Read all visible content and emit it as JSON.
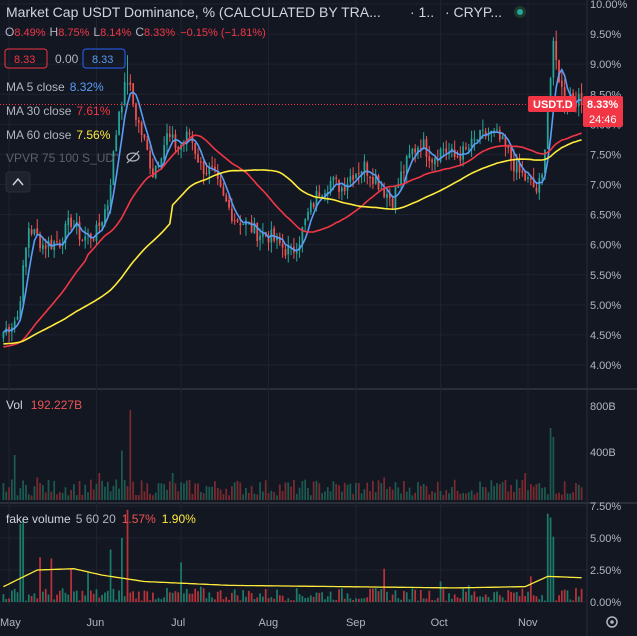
{
  "header": {
    "title": "Market Cap USDT Dominance, % (CALCULATED BY TRA...",
    "interval": "· 1..",
    "exchange": "· CRYP...",
    "ohlc": {
      "o_label": "O",
      "o": "8.49%",
      "h_label": "H",
      "h": "8.75%",
      "l_label": "L",
      "l": "8.14%",
      "c_label": "C",
      "c": "8.33%",
      "change": "−0.15% (−1.81%)"
    },
    "bid": "8.33",
    "spread": "0.00",
    "ask": "8.33"
  },
  "indicators": {
    "ma5": {
      "label": "MA 5 close",
      "value": "8.32%",
      "color": "#5b9cf6"
    },
    "ma30": {
      "label": "MA 30 close",
      "value": "7.61%",
      "color": "#f23645"
    },
    "ma60": {
      "label": "MA 60 close",
      "value": "7.56%",
      "color": "#ffeb3b"
    },
    "vpvr": {
      "label": "VPVR 75 100 S_UD\""
    }
  },
  "price_tag": {
    "symbol": "USDT.D",
    "value": "8.33%",
    "countdown": "24:46"
  },
  "vol_pane": {
    "label": "Vol",
    "value": "192.227B",
    "ticks": [
      "800B",
      "400B"
    ]
  },
  "fake_pane": {
    "label": "fake volume",
    "params": "5 60 20",
    "v1": "1.57%",
    "v2": "1.90%",
    "ticks": [
      "7.50%",
      "5.00%",
      "2.50%",
      "0.00%"
    ]
  },
  "colors": {
    "up": "#26a69a",
    "down": "#ef5350",
    "background": "#131722",
    "grid": "#1f2330"
  },
  "chart_data": {
    "type": "candlestick",
    "title": "Market Cap USDT Dominance, %",
    "y_ticks": [
      4.0,
      4.5,
      5.0,
      5.5,
      6.0,
      6.5,
      7.0,
      7.5,
      8.0,
      8.5,
      9.0,
      9.5,
      10.0
    ],
    "y_tick_labels": [
      "4.00%",
      "4.50%",
      "5.00%",
      "5.50%",
      "6.00%",
      "6.50%",
      "7.00%",
      "7.50%",
      "8.00%",
      "8.50%",
      "9.00%",
      "9.50%",
      "10.00%"
    ],
    "ylim": [
      3.9,
      10.0
    ],
    "x_labels": [
      "May",
      "Jun",
      "Jul",
      "Aug",
      "Sep",
      "Oct",
      "Nov"
    ],
    "x_label_day": [
      2,
      33,
      63,
      94,
      125,
      155,
      186
    ],
    "days": 206,
    "close_anchors": [
      [
        0,
        4.55
      ],
      [
        5,
        4.8
      ],
      [
        9,
        6.3
      ],
      [
        14,
        6.0
      ],
      [
        20,
        6.05
      ],
      [
        24,
        6.4
      ],
      [
        28,
        6.1
      ],
      [
        33,
        6.2
      ],
      [
        37,
        6.7
      ],
      [
        41,
        8.25
      ],
      [
        44,
        8.75
      ],
      [
        47,
        8.15
      ],
      [
        50,
        7.7
      ],
      [
        53,
        7.2
      ],
      [
        58,
        7.8
      ],
      [
        62,
        7.6
      ],
      [
        66,
        7.85
      ],
      [
        70,
        7.3
      ],
      [
        74,
        7.2
      ],
      [
        78,
        6.75
      ],
      [
        82,
        6.45
      ],
      [
        86,
        6.35
      ],
      [
        90,
        6.2
      ],
      [
        94,
        6.15
      ],
      [
        98,
        6.0
      ],
      [
        102,
        5.85
      ],
      [
        105,
        6.1
      ],
      [
        108,
        6.5
      ],
      [
        112,
        6.9
      ],
      [
        116,
        7.05
      ],
      [
        120,
        6.95
      ],
      [
        124,
        7.2
      ],
      [
        128,
        7.3
      ],
      [
        132,
        7.1
      ],
      [
        135,
        6.9
      ],
      [
        138,
        6.75
      ],
      [
        141,
        7.15
      ],
      [
        145,
        7.55
      ],
      [
        148,
        7.7
      ],
      [
        152,
        7.45
      ],
      [
        156,
        7.6
      ],
      [
        160,
        7.45
      ],
      [
        164,
        7.55
      ],
      [
        168,
        7.75
      ],
      [
        172,
        7.85
      ],
      [
        175,
        7.8
      ],
      [
        178,
        7.6
      ],
      [
        182,
        7.25
      ],
      [
        186,
        7.05
      ],
      [
        189,
        6.9
      ],
      [
        191,
        7.1
      ],
      [
        193,
        8.3
      ],
      [
        195,
        9.25
      ],
      [
        197,
        8.8
      ],
      [
        199,
        8.35
      ],
      [
        201,
        8.5
      ],
      [
        205,
        8.33
      ]
    ],
    "vol_spikes": [
      [
        4,
        0.5
      ],
      [
        12,
        0.25
      ],
      [
        34,
        0.3
      ],
      [
        42,
        0.55
      ],
      [
        45,
        1.0
      ],
      [
        60,
        0.3
      ],
      [
        135,
        0.25
      ],
      [
        185,
        0.3
      ],
      [
        194,
        0.8
      ],
      [
        195,
        0.7
      ]
    ],
    "vol_max_label": "800B",
    "fake_spikes": [
      [
        6,
        6.1
      ],
      [
        7,
        6.5
      ],
      [
        13,
        3.5
      ],
      [
        17,
        3.4
      ],
      [
        24,
        2.6
      ],
      [
        30,
        2.3
      ],
      [
        38,
        4.1
      ],
      [
        42,
        5.0
      ],
      [
        44,
        7.2
      ],
      [
        63,
        3.1
      ],
      [
        70,
        1.2
      ],
      [
        135,
        2.6
      ],
      [
        155,
        1.6
      ],
      [
        165,
        1.3
      ],
      [
        187,
        2.0
      ],
      [
        193,
        6.9
      ],
      [
        194,
        6.6
      ],
      [
        195,
        5.1
      ]
    ],
    "fake_avg_level": [
      [
        0,
        1.2
      ],
      [
        12,
        2.5
      ],
      [
        25,
        2.6
      ],
      [
        35,
        2.1
      ],
      [
        50,
        1.6
      ],
      [
        80,
        1.3
      ],
      [
        120,
        1.2
      ],
      [
        160,
        1.1
      ],
      [
        185,
        1.2
      ],
      [
        193,
        2.0
      ],
      [
        205,
        1.9
      ]
    ],
    "fake_ylim": [
      0,
      8.2
    ],
    "ma_periods": [
      5,
      30,
      60
    ],
    "current": 8.33
  }
}
